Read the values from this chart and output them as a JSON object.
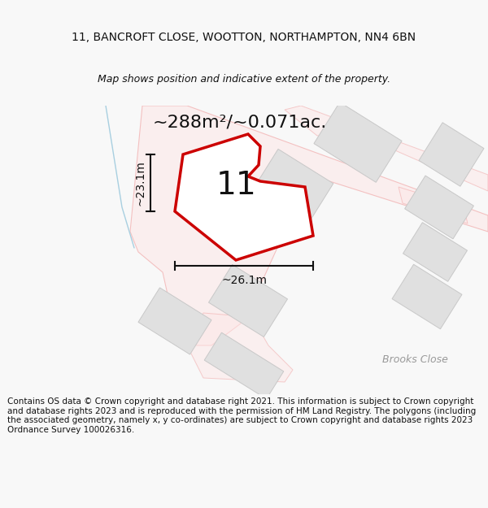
{
  "title_line1": "11, BANCROFT CLOSE, WOOTTON, NORTHAMPTON, NN4 6BN",
  "title_line2": "Map shows position and indicative extent of the property.",
  "area_text": "~288m²/~0.071ac.",
  "dim_width": "~26.1m",
  "dim_height": "~23.1m",
  "plot_number": "11",
  "footer_text": "Contains OS data © Crown copyright and database right 2021. This information is subject to Crown copyright and database rights 2023 and is reproduced with the permission of HM Land Registry. The polygons (including the associated geometry, namely x, y co-ordinates) are subject to Crown copyright and database rights 2023 Ordnance Survey 100026316.",
  "bg_color": "#f8f8f8",
  "map_bg": "#ffffff",
  "plot_fill": "#ffffff",
  "plot_outline": "#cc0000",
  "road_fill": "#fde8e8",
  "road_edge": "#f0a0a0",
  "building_fill": "#e0e0e0",
  "building_edge": "#c8c8c8",
  "blue_line_color": "#a8cfe0",
  "street_label": "Brooks Close",
  "street_label_color": "#999999",
  "title_fontsize": 10,
  "subtitle_fontsize": 9,
  "area_fontsize": 16,
  "dim_fontsize": 10,
  "plot_num_fontsize": 28,
  "footer_fontsize": 7.5
}
